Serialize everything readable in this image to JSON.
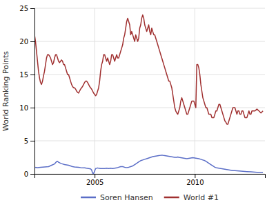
{
  "chart_data": {
    "type": "line",
    "ylabel": "World Ranking Points",
    "xlim": [
      2002.0,
      2013.5
    ],
    "xticks": [
      2005,
      2010
    ],
    "ylim": [
      0,
      25
    ],
    "yticks": [
      0,
      5,
      10,
      15,
      20,
      25
    ],
    "grid": true,
    "legend": "bottom",
    "series": [
      {
        "name": "Soren Hansen",
        "color": "#5b6ec7",
        "x": [
          2002.0,
          2002.15,
          2002.3,
          2002.5,
          2002.7,
          2002.85,
          2003.0,
          2003.1,
          2003.15,
          2003.2,
          2003.3,
          2003.4,
          2003.5,
          2003.6,
          2003.7,
          2003.8,
          2003.9,
          2004.0,
          2004.2,
          2004.3,
          2004.5,
          2004.6,
          2004.7,
          2004.8,
          2004.85,
          2004.9,
          2004.95,
          2005.05,
          2005.1,
          2005.15,
          2005.2,
          2005.3,
          2005.4,
          2005.5,
          2005.6,
          2005.7,
          2005.8,
          2005.9,
          2006.0,
          2006.1,
          2006.2,
          2006.3,
          2006.4,
          2006.5,
          2006.6,
          2006.7,
          2006.8,
          2006.9,
          2007.0,
          2007.1,
          2007.2,
          2007.3,
          2007.4,
          2007.5,
          2007.6,
          2007.7,
          2007.8,
          2007.9,
          2008.0,
          2008.1,
          2008.2,
          2008.3,
          2008.4,
          2008.5,
          2008.6,
          2008.7,
          2008.8,
          2008.9,
          2009.0,
          2009.1,
          2009.15,
          2009.2,
          2009.3,
          2009.4,
          2009.5,
          2009.6,
          2009.7,
          2009.8,
          2009.9,
          2010.0,
          2010.1,
          2010.2,
          2010.3,
          2010.4,
          2010.5,
          2010.6,
          2010.7,
          2010.8,
          2010.9,
          2011.0,
          2011.1,
          2011.2,
          2011.3,
          2011.4,
          2011.5,
          2011.6,
          2011.7,
          2011.8,
          2011.9,
          2012.0,
          2012.2,
          2012.4,
          2012.6,
          2012.8,
          2013.0,
          2013.2,
          2013.4
        ],
        "values": [
          1.0,
          0.95,
          1.0,
          1.05,
          1.1,
          1.3,
          1.5,
          1.85,
          1.9,
          1.75,
          1.6,
          1.5,
          1.4,
          1.35,
          1.3,
          1.2,
          1.1,
          1.05,
          1.0,
          0.95,
          0.9,
          0.85,
          0.8,
          0.75,
          0.6,
          0.1,
          0.05,
          0.8,
          0.85,
          0.9,
          0.85,
          0.8,
          0.8,
          0.8,
          0.85,
          0.8,
          0.85,
          0.8,
          0.85,
          0.9,
          1.0,
          1.1,
          1.1,
          1.0,
          0.95,
          1.0,
          1.1,
          1.2,
          1.4,
          1.6,
          1.8,
          2.0,
          2.1,
          2.2,
          2.3,
          2.4,
          2.5,
          2.6,
          2.65,
          2.7,
          2.75,
          2.8,
          2.8,
          2.75,
          2.7,
          2.65,
          2.6,
          2.55,
          2.5,
          2.5,
          2.55,
          2.5,
          2.45,
          2.4,
          2.35,
          2.3,
          2.35,
          2.4,
          2.45,
          2.4,
          2.35,
          2.3,
          2.2,
          2.1,
          2.0,
          1.8,
          1.6,
          1.4,
          1.2,
          1.0,
          0.9,
          0.85,
          0.8,
          0.75,
          0.7,
          0.65,
          0.6,
          0.55,
          0.5,
          0.5,
          0.45,
          0.4,
          0.35,
          0.3,
          0.25,
          0.2,
          0.2
        ]
      },
      {
        "name": "World #1",
        "color": "#a03030",
        "x": [
          2002.0,
          2002.05,
          2002.1,
          2002.15,
          2002.2,
          2002.25,
          2002.3,
          2002.35,
          2002.4,
          2002.45,
          2002.5,
          2002.55,
          2002.6,
          2002.65,
          2002.7,
          2002.75,
          2002.8,
          2002.85,
          2002.9,
          2002.95,
          2003.0,
          2003.05,
          2003.1,
          2003.15,
          2003.2,
          2003.25,
          2003.3,
          2003.35,
          2003.4,
          2003.45,
          2003.5,
          2003.55,
          2003.6,
          2003.65,
          2003.7,
          2003.75,
          2003.8,
          2003.85,
          2003.9,
          2003.95,
          2004.0,
          2004.05,
          2004.1,
          2004.15,
          2004.2,
          2004.25,
          2004.3,
          2004.35,
          2004.4,
          2004.45,
          2004.5,
          2004.55,
          2004.6,
          2004.65,
          2004.7,
          2004.75,
          2004.8,
          2004.85,
          2004.9,
          2004.95,
          2005.0,
          2005.05,
          2005.1,
          2005.15,
          2005.2,
          2005.25,
          2005.3,
          2005.35,
          2005.4,
          2005.45,
          2005.5,
          2005.55,
          2005.6,
          2005.65,
          2005.7,
          2005.75,
          2005.8,
          2005.85,
          2005.9,
          2005.95,
          2006.0,
          2006.05,
          2006.1,
          2006.15,
          2006.2,
          2006.25,
          2006.3,
          2006.35,
          2006.4,
          2006.45,
          2006.5,
          2006.55,
          2006.6,
          2006.65,
          2006.7,
          2006.75,
          2006.8,
          2006.85,
          2006.9,
          2006.95,
          2007.0,
          2007.05,
          2007.1,
          2007.15,
          2007.2,
          2007.25,
          2007.3,
          2007.35,
          2007.4,
          2007.45,
          2007.5,
          2007.55,
          2007.6,
          2007.65,
          2007.7,
          2007.75,
          2007.8,
          2007.85,
          2007.9,
          2007.95,
          2008.0,
          2008.05,
          2008.1,
          2008.15,
          2008.2,
          2008.25,
          2008.3,
          2008.35,
          2008.4,
          2008.45,
          2008.5,
          2008.55,
          2008.6,
          2008.65,
          2008.7,
          2008.75,
          2008.8,
          2008.85,
          2008.9,
          2008.95,
          2009.0,
          2009.05,
          2009.1,
          2009.15,
          2009.2,
          2009.25,
          2009.3,
          2009.35,
          2009.4,
          2009.45,
          2009.5,
          2009.55,
          2009.6,
          2009.65,
          2009.7,
          2009.75,
          2009.8,
          2009.85,
          2009.9,
          2009.95,
          2010.0,
          2010.05,
          2010.1,
          2010.15,
          2010.2,
          2010.25,
          2010.3,
          2010.35,
          2010.4,
          2010.45,
          2010.5,
          2010.55,
          2010.6,
          2010.65,
          2010.7,
          2010.75,
          2010.8,
          2010.85,
          2010.9,
          2010.95,
          2011.0,
          2011.05,
          2011.1,
          2011.15,
          2011.2,
          2011.25,
          2011.3,
          2011.35,
          2011.4,
          2011.45,
          2011.5,
          2011.55,
          2011.6,
          2011.65,
          2011.7,
          2011.75,
          2011.8,
          2011.85,
          2011.9,
          2011.95,
          2012.0,
          2012.05,
          2012.1,
          2012.15,
          2012.2,
          2012.25,
          2012.3,
          2012.35,
          2012.4,
          2012.45,
          2012.5,
          2012.55,
          2012.6,
          2012.65,
          2012.7,
          2012.75,
          2012.8,
          2012.85,
          2012.9,
          2012.95,
          2013.0,
          2013.1,
          2013.2,
          2013.3,
          2013.4
        ],
        "values": [
          21.0,
          20.0,
          18.5,
          17.0,
          15.5,
          14.5,
          13.8,
          13.5,
          14.0,
          14.8,
          15.5,
          16.5,
          17.5,
          18.0,
          18.0,
          17.8,
          17.5,
          17.0,
          16.5,
          16.8,
          17.5,
          18.0,
          18.0,
          17.5,
          17.0,
          16.8,
          17.0,
          17.2,
          17.0,
          16.5,
          16.5,
          16.0,
          15.5,
          15.0,
          15.0,
          14.5,
          14.0,
          13.5,
          13.2,
          13.0,
          13.0,
          12.8,
          12.5,
          12.3,
          12.2,
          12.5,
          12.8,
          13.0,
          13.2,
          13.5,
          13.8,
          14.0,
          14.0,
          13.8,
          13.5,
          13.2,
          13.0,
          12.8,
          12.5,
          12.2,
          12.0,
          11.8,
          12.0,
          12.5,
          13.0,
          14.0,
          15.5,
          16.5,
          17.0,
          18.0,
          18.0,
          17.5,
          17.0,
          17.5,
          17.0,
          16.5,
          17.0,
          18.0,
          18.0,
          17.5,
          17.0,
          17.5,
          18.0,
          17.5,
          17.5,
          18.0,
          18.5,
          19.0,
          19.5,
          20.5,
          21.0,
          22.0,
          23.0,
          23.5,
          23.0,
          22.5,
          21.0,
          21.5,
          21.0,
          20.5,
          20.0,
          21.0,
          20.5,
          20.0,
          20.5,
          22.0,
          22.5,
          23.5,
          24.0,
          23.5,
          22.5,
          22.0,
          21.5,
          22.0,
          22.5,
          21.5,
          21.0,
          22.0,
          21.5,
          21.0,
          21.0,
          20.5,
          20.0,
          19.5,
          19.0,
          18.5,
          18.0,
          17.5,
          17.0,
          16.5,
          16.0,
          15.5,
          15.0,
          14.5,
          14.0,
          14.0,
          13.5,
          13.0,
          12.0,
          11.0,
          10.0,
          9.5,
          9.2,
          9.0,
          9.5,
          10.0,
          11.0,
          11.5,
          11.0,
          10.5,
          10.0,
          9.5,
          9.0,
          9.0,
          9.5,
          10.0,
          10.5,
          11.0,
          11.0,
          11.0,
          10.5,
          10.0,
          16.5,
          16.5,
          16.0,
          15.0,
          13.5,
          12.5,
          11.5,
          11.0,
          10.5,
          10.0,
          10.0,
          9.5,
          9.0,
          9.0,
          9.0,
          8.5,
          8.5,
          8.5,
          9.0,
          9.5,
          9.5,
          10.0,
          10.5,
          10.5,
          10.0,
          9.5,
          9.0,
          8.5,
          8.0,
          7.8,
          7.5,
          7.5,
          8.0,
          8.5,
          9.0,
          9.5,
          10.0,
          10.0,
          10.0,
          9.5,
          9.0,
          9.5,
          9.5,
          9.0,
          9.0,
          9.5,
          9.5,
          9.0,
          8.5,
          8.5,
          8.5,
          9.0,
          9.5,
          9.0,
          9.0,
          9.5,
          9.5,
          9.5,
          9.5,
          9.8,
          9.5,
          9.2,
          9.5
        ]
      }
    ]
  }
}
